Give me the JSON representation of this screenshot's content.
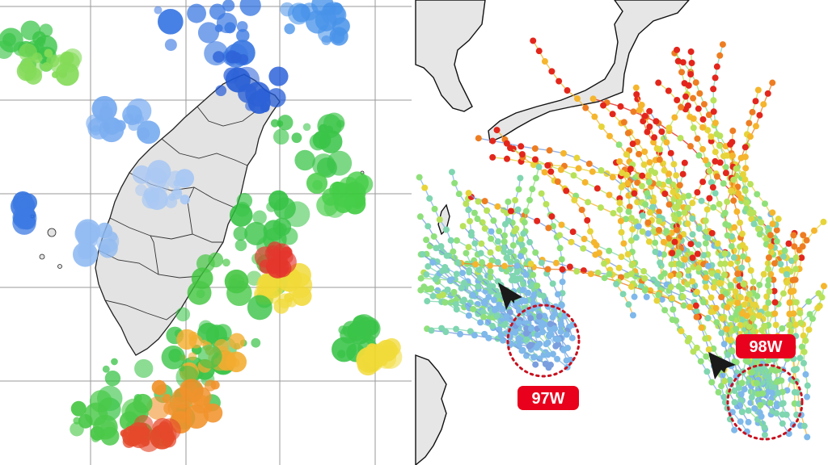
{
  "panels": {
    "left": {
      "name": "radar-echo-map",
      "colors": {
        "land": "#e3e3e3",
        "grid": "#9a9a9a",
        "coast": "#222222"
      }
    },
    "right": {
      "name": "ensemble-track-map",
      "colors": {
        "land": "#e6e6e6",
        "track_low": "#7a9ede",
        "track_mid": "#8fe07a",
        "track_high": "#ffd23a",
        "track_peak": "#e3261c"
      }
    }
  },
  "disturbances": [
    {
      "id": "97W",
      "label": "97W",
      "color": "#e8001c"
    },
    {
      "id": "98W",
      "label": "98W",
      "color": "#e8001c"
    }
  ],
  "icons": [
    "arrow-pointer-icon",
    "dotted-circle-icon"
  ]
}
